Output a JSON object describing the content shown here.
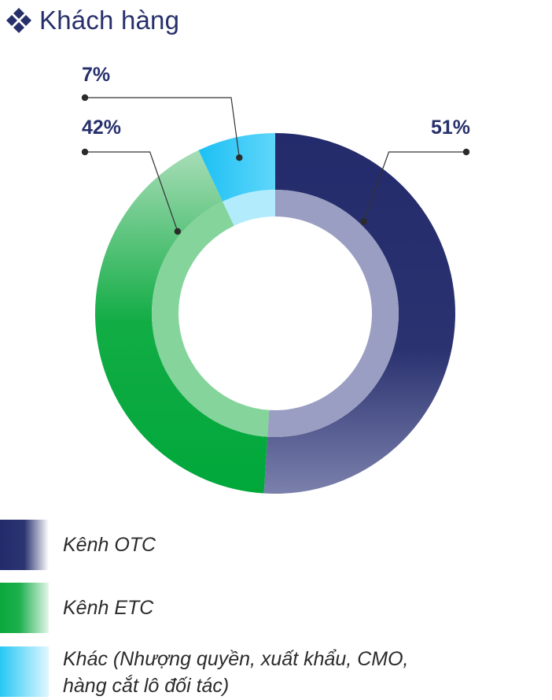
{
  "header": {
    "title": "Khách hàng",
    "icon": "diamond-cluster-icon"
  },
  "chart_data": {
    "type": "pie",
    "style": "donut",
    "categories": [
      "Kênh OTC",
      "Kênh ETC",
      "Khác (Nhượng quyền, xuất khẩu, CMO, hàng cắt lô đối tác)"
    ],
    "values": [
      51,
      42,
      7
    ],
    "data_labels": [
      "51%",
      "42%",
      "7%"
    ],
    "colors": [
      "#232b6c",
      "#0aa83c",
      "#27c7f4"
    ],
    "inner_colors": [
      "#9a9ec2",
      "#84d49c",
      "#b2ebfb"
    ],
    "legend_position": "bottom-left",
    "legend": [
      {
        "label": "Kênh OTC",
        "color": "#232b6c"
      },
      {
        "label": "Kênh ETC",
        "color": "#0aa83c"
      },
      {
        "label_line1": "Khác (Nhượng quyền, xuất khẩu, CMO,",
        "label_line2": "hàng cắt lô đối tác)",
        "color": "#27c7f4"
      }
    ]
  }
}
